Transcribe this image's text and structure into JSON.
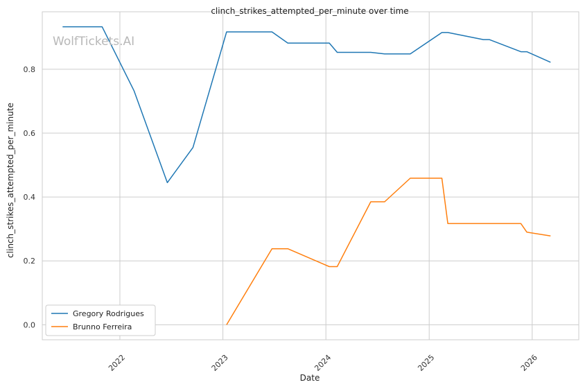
{
  "chart_data": {
    "type": "line",
    "title": "clinch_strikes_attempted_per_minute over time",
    "xlabel": "Date",
    "ylabel": "clinch_strikes_attempted_per_minute",
    "watermark": "WolfTickets.AI",
    "x_ticks": [
      "2022",
      "2023",
      "2024",
      "2025",
      "2026"
    ],
    "y_ticks": [
      "0.0",
      "0.2",
      "0.4",
      "0.6",
      "0.8"
    ],
    "xlim": [
      "2021-04-01",
      "2026-06-15"
    ],
    "ylim": [
      -0.047,
      0.98
    ],
    "grid": true,
    "legend_position": "lower-left",
    "series": [
      {
        "name": "Gregory Rodrigues",
        "color": "#1f77b4",
        "points": [
          [
            "2021-06-12",
            0.933
          ],
          [
            "2021-10-30",
            0.933
          ],
          [
            "2022-02-20",
            0.733
          ],
          [
            "2022-06-18",
            0.445
          ],
          [
            "2022-09-17",
            0.555
          ],
          [
            "2023-01-14",
            0.917
          ],
          [
            "2023-06-24",
            0.917
          ],
          [
            "2023-08-19",
            0.882
          ],
          [
            "2024-01-13",
            0.882
          ],
          [
            "2024-02-10",
            0.853
          ],
          [
            "2024-06-08",
            0.853
          ],
          [
            "2024-07-27",
            0.848
          ],
          [
            "2024-10-26",
            0.848
          ],
          [
            "2025-02-15",
            0.915
          ],
          [
            "2025-03-08",
            0.915
          ],
          [
            "2025-07-12",
            0.893
          ],
          [
            "2025-08-02",
            0.893
          ],
          [
            "2025-11-22",
            0.855
          ],
          [
            "2025-12-13",
            0.855
          ],
          [
            "2026-03-07",
            0.822
          ]
        ]
      },
      {
        "name": "Brunno Ferreira",
        "color": "#ff7f0e",
        "points": [
          [
            "2023-01-14",
            0.0
          ],
          [
            "2023-06-24",
            0.238
          ],
          [
            "2023-08-19",
            0.238
          ],
          [
            "2024-01-13",
            0.182
          ],
          [
            "2024-02-10",
            0.182
          ],
          [
            "2024-06-08",
            0.385
          ],
          [
            "2024-07-27",
            0.385
          ],
          [
            "2024-10-26",
            0.459
          ],
          [
            "2025-02-15",
            0.459
          ],
          [
            "2025-03-08",
            0.317
          ],
          [
            "2025-07-12",
            0.317
          ],
          [
            "2025-11-22",
            0.317
          ],
          [
            "2025-12-13",
            0.29
          ],
          [
            "2026-03-07",
            0.278
          ]
        ]
      }
    ]
  }
}
